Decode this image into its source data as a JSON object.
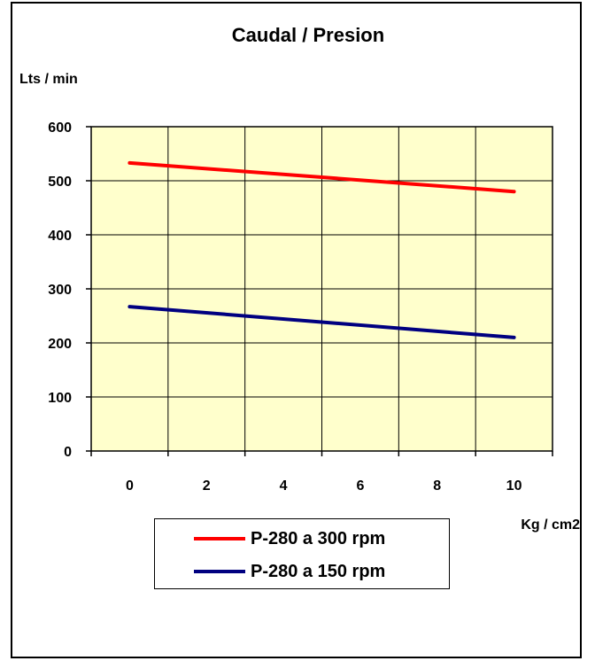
{
  "chart_data": {
    "type": "line",
    "title": "Caudal / Presion",
    "ylabel": "Lts / min",
    "xlabel": "Kg / cm2",
    "ylim": [
      0,
      600
    ],
    "xlim": [
      -1,
      11
    ],
    "yticks": [
      "0",
      "100",
      "200",
      "300",
      "400",
      "500",
      "600"
    ],
    "xticks": [
      "0",
      "2",
      "4",
      "6",
      "8",
      "10"
    ],
    "grid": true,
    "plot_background": "#FFFFCC",
    "legend_position": "bottom-center",
    "series": [
      {
        "name": "P-280 a 300 rpm",
        "color": "#FF0000",
        "x": [
          0,
          10
        ],
        "y": [
          533,
          480
        ]
      },
      {
        "name": "P-280 a 150 rpm",
        "color": "#000080",
        "x": [
          0,
          10
        ],
        "y": [
          267,
          210
        ]
      }
    ]
  }
}
